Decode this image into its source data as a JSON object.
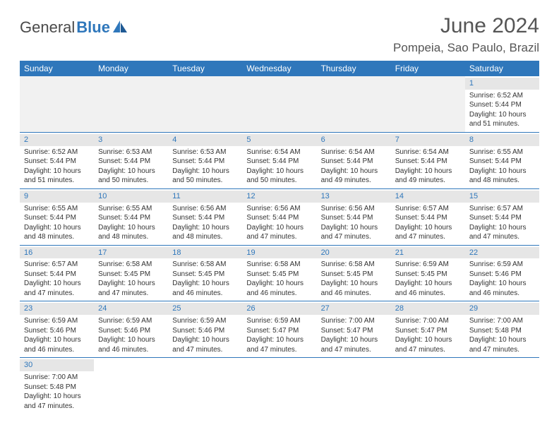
{
  "logo": {
    "part1": "General",
    "part2": "Blue"
  },
  "title": "June 2024",
  "location": "Pompeia, Sao Paulo, Brazil",
  "colors": {
    "header_bg": "#2f77bb",
    "header_text": "#ffffff",
    "daynum_bg": "#e6e6e6",
    "daynum_text": "#2f77bb",
    "row_border": "#2f77bb",
    "body_text": "#333333",
    "empty_bg": "#f1f1f1"
  },
  "weekdays": [
    "Sunday",
    "Monday",
    "Tuesday",
    "Wednesday",
    "Thursday",
    "Friday",
    "Saturday"
  ],
  "weeks": [
    [
      null,
      null,
      null,
      null,
      null,
      null,
      {
        "day": "1",
        "sunrise": "Sunrise: 6:52 AM",
        "sunset": "Sunset: 5:44 PM",
        "daylight": "Daylight: 10 hours and 51 minutes."
      }
    ],
    [
      {
        "day": "2",
        "sunrise": "Sunrise: 6:52 AM",
        "sunset": "Sunset: 5:44 PM",
        "daylight": "Daylight: 10 hours and 51 minutes."
      },
      {
        "day": "3",
        "sunrise": "Sunrise: 6:53 AM",
        "sunset": "Sunset: 5:44 PM",
        "daylight": "Daylight: 10 hours and 50 minutes."
      },
      {
        "day": "4",
        "sunrise": "Sunrise: 6:53 AM",
        "sunset": "Sunset: 5:44 PM",
        "daylight": "Daylight: 10 hours and 50 minutes."
      },
      {
        "day": "5",
        "sunrise": "Sunrise: 6:54 AM",
        "sunset": "Sunset: 5:44 PM",
        "daylight": "Daylight: 10 hours and 50 minutes."
      },
      {
        "day": "6",
        "sunrise": "Sunrise: 6:54 AM",
        "sunset": "Sunset: 5:44 PM",
        "daylight": "Daylight: 10 hours and 49 minutes."
      },
      {
        "day": "7",
        "sunrise": "Sunrise: 6:54 AM",
        "sunset": "Sunset: 5:44 PM",
        "daylight": "Daylight: 10 hours and 49 minutes."
      },
      {
        "day": "8",
        "sunrise": "Sunrise: 6:55 AM",
        "sunset": "Sunset: 5:44 PM",
        "daylight": "Daylight: 10 hours and 48 minutes."
      }
    ],
    [
      {
        "day": "9",
        "sunrise": "Sunrise: 6:55 AM",
        "sunset": "Sunset: 5:44 PM",
        "daylight": "Daylight: 10 hours and 48 minutes."
      },
      {
        "day": "10",
        "sunrise": "Sunrise: 6:55 AM",
        "sunset": "Sunset: 5:44 PM",
        "daylight": "Daylight: 10 hours and 48 minutes."
      },
      {
        "day": "11",
        "sunrise": "Sunrise: 6:56 AM",
        "sunset": "Sunset: 5:44 PM",
        "daylight": "Daylight: 10 hours and 48 minutes."
      },
      {
        "day": "12",
        "sunrise": "Sunrise: 6:56 AM",
        "sunset": "Sunset: 5:44 PM",
        "daylight": "Daylight: 10 hours and 47 minutes."
      },
      {
        "day": "13",
        "sunrise": "Sunrise: 6:56 AM",
        "sunset": "Sunset: 5:44 PM",
        "daylight": "Daylight: 10 hours and 47 minutes."
      },
      {
        "day": "14",
        "sunrise": "Sunrise: 6:57 AM",
        "sunset": "Sunset: 5:44 PM",
        "daylight": "Daylight: 10 hours and 47 minutes."
      },
      {
        "day": "15",
        "sunrise": "Sunrise: 6:57 AM",
        "sunset": "Sunset: 5:44 PM",
        "daylight": "Daylight: 10 hours and 47 minutes."
      }
    ],
    [
      {
        "day": "16",
        "sunrise": "Sunrise: 6:57 AM",
        "sunset": "Sunset: 5:44 PM",
        "daylight": "Daylight: 10 hours and 47 minutes."
      },
      {
        "day": "17",
        "sunrise": "Sunrise: 6:58 AM",
        "sunset": "Sunset: 5:45 PM",
        "daylight": "Daylight: 10 hours and 47 minutes."
      },
      {
        "day": "18",
        "sunrise": "Sunrise: 6:58 AM",
        "sunset": "Sunset: 5:45 PM",
        "daylight": "Daylight: 10 hours and 46 minutes."
      },
      {
        "day": "19",
        "sunrise": "Sunrise: 6:58 AM",
        "sunset": "Sunset: 5:45 PM",
        "daylight": "Daylight: 10 hours and 46 minutes."
      },
      {
        "day": "20",
        "sunrise": "Sunrise: 6:58 AM",
        "sunset": "Sunset: 5:45 PM",
        "daylight": "Daylight: 10 hours and 46 minutes."
      },
      {
        "day": "21",
        "sunrise": "Sunrise: 6:59 AM",
        "sunset": "Sunset: 5:45 PM",
        "daylight": "Daylight: 10 hours and 46 minutes."
      },
      {
        "day": "22",
        "sunrise": "Sunrise: 6:59 AM",
        "sunset": "Sunset: 5:46 PM",
        "daylight": "Daylight: 10 hours and 46 minutes."
      }
    ],
    [
      {
        "day": "23",
        "sunrise": "Sunrise: 6:59 AM",
        "sunset": "Sunset: 5:46 PM",
        "daylight": "Daylight: 10 hours and 46 minutes."
      },
      {
        "day": "24",
        "sunrise": "Sunrise: 6:59 AM",
        "sunset": "Sunset: 5:46 PM",
        "daylight": "Daylight: 10 hours and 46 minutes."
      },
      {
        "day": "25",
        "sunrise": "Sunrise: 6:59 AM",
        "sunset": "Sunset: 5:46 PM",
        "daylight": "Daylight: 10 hours and 47 minutes."
      },
      {
        "day": "26",
        "sunrise": "Sunrise: 6:59 AM",
        "sunset": "Sunset: 5:47 PM",
        "daylight": "Daylight: 10 hours and 47 minutes."
      },
      {
        "day": "27",
        "sunrise": "Sunrise: 7:00 AM",
        "sunset": "Sunset: 5:47 PM",
        "daylight": "Daylight: 10 hours and 47 minutes."
      },
      {
        "day": "28",
        "sunrise": "Sunrise: 7:00 AM",
        "sunset": "Sunset: 5:47 PM",
        "daylight": "Daylight: 10 hours and 47 minutes."
      },
      {
        "day": "29",
        "sunrise": "Sunrise: 7:00 AM",
        "sunset": "Sunset: 5:48 PM",
        "daylight": "Daylight: 10 hours and 47 minutes."
      }
    ],
    [
      {
        "day": "30",
        "sunrise": "Sunrise: 7:00 AM",
        "sunset": "Sunset: 5:48 PM",
        "daylight": "Daylight: 10 hours and 47 minutes."
      },
      null,
      null,
      null,
      null,
      null,
      null
    ]
  ]
}
